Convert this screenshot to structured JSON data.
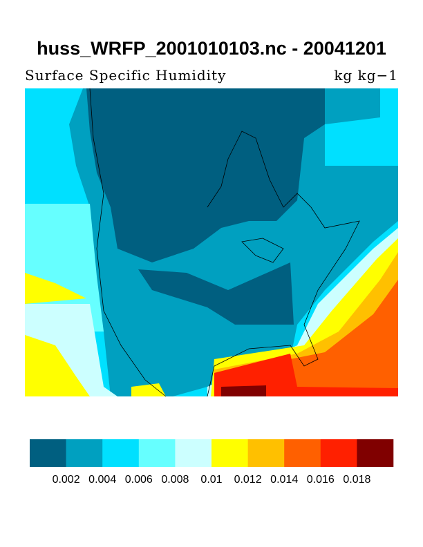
{
  "title": "huss_WRFP_2001010103.nc - 20041201",
  "subtitle": "Surface Specific Humidity",
  "units": "kg kg−1",
  "colorbar": {
    "colors": [
      "#005f80",
      "#00a0c0",
      "#00e0ff",
      "#66ffff",
      "#ccffff",
      "#ffff00",
      "#ffc000",
      "#ff6000",
      "#ff2000",
      "#800000"
    ],
    "ticks": [
      0.002,
      0.004,
      0.006,
      0.008,
      0.01,
      0.012,
      0.014,
      0.016,
      0.018
    ]
  }
}
